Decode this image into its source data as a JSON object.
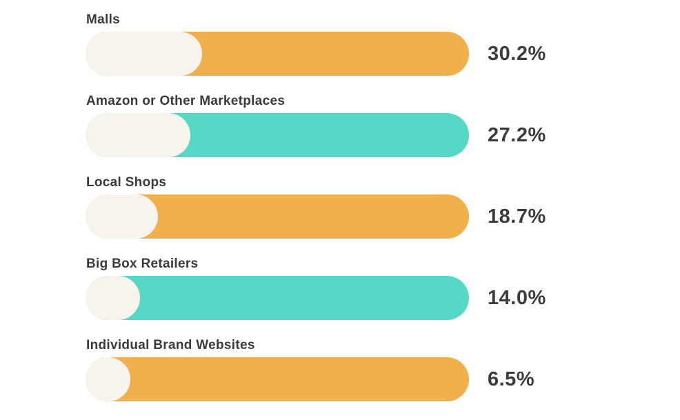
{
  "chart_data": {
    "type": "bar",
    "title": "",
    "orientation": "horizontal",
    "categories": [
      "Malls",
      "Amazon or Other Marketplaces",
      "Local Shops",
      "Big Box Retailers",
      "Individual Brand Websites"
    ],
    "values": [
      30.2,
      27.2,
      18.7,
      14.0,
      6.5
    ],
    "value_labels": [
      "30.2%",
      "27.2%",
      "18.7%",
      "14.0%",
      "6.5%"
    ],
    "xlim": [
      0,
      100
    ],
    "grid": false,
    "legend": "none",
    "bar_track_colors": [
      "#f1b04c",
      "#57d7c5",
      "#f1b04c",
      "#57d7c5",
      "#f1b04c"
    ],
    "bar_fill_color": "#f7f3ed",
    "label_color": "#3a3a3a",
    "value_color": "#3c3c3c",
    "background_color": "#ffffff"
  },
  "rows": [
    {
      "label": "Malls",
      "value": 30.2,
      "value_label": "30.2%",
      "color": "#f1b04c"
    },
    {
      "label": "Amazon or Other Marketplaces",
      "value": 27.2,
      "value_label": "27.2%",
      "color": "#57d7c5"
    },
    {
      "label": "Local Shops",
      "value": 18.7,
      "value_label": "18.7%",
      "color": "#f1b04c"
    },
    {
      "label": "Big Box Retailers",
      "value": 14.0,
      "value_label": "14.0%",
      "color": "#57d7c5"
    },
    {
      "label": "Individual Brand Websites",
      "value": 6.5,
      "value_label": "6.5%",
      "color": "#f1b04c"
    }
  ]
}
